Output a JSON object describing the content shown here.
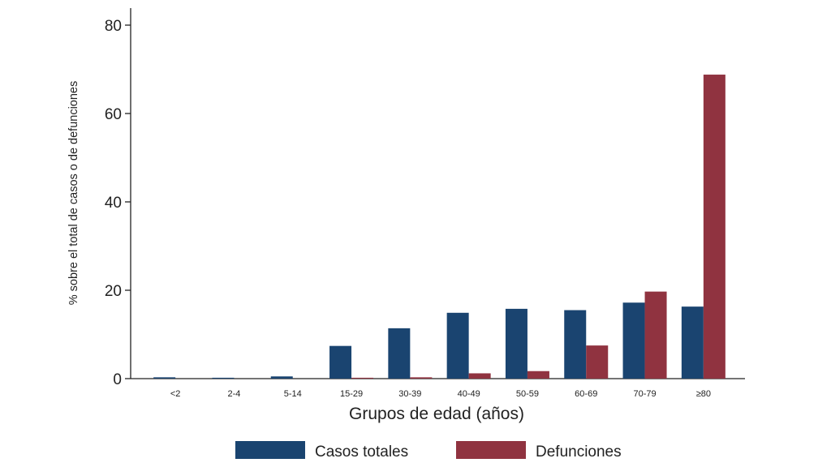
{
  "chart_data": {
    "type": "bar",
    "xlabel": "Grupos de edad (años)",
    "ylabel": "% sobre el total de casos o de defunciones",
    "ylim": [
      0,
      80
    ],
    "yticks": [
      0,
      20,
      40,
      60,
      80
    ],
    "grid": false,
    "legend_position": "bottom",
    "categories": [
      "<2",
      "2-4",
      "5-14",
      "15-29",
      "30-39",
      "40-49",
      "50-59",
      "60-69",
      "70-79",
      "≥80"
    ],
    "series": [
      {
        "name": "Casos totales",
        "color": "#1a4470",
        "values": [
          0.3,
          0.2,
          0.5,
          7.4,
          11.4,
          14.9,
          15.8,
          15.5,
          17.2,
          16.3
        ]
      },
      {
        "name": "Defunciones",
        "color": "#903340",
        "values": [
          0.0,
          0.0,
          0.0,
          0.2,
          0.3,
          1.2,
          1.7,
          7.5,
          19.7,
          68.8
        ]
      }
    ]
  }
}
